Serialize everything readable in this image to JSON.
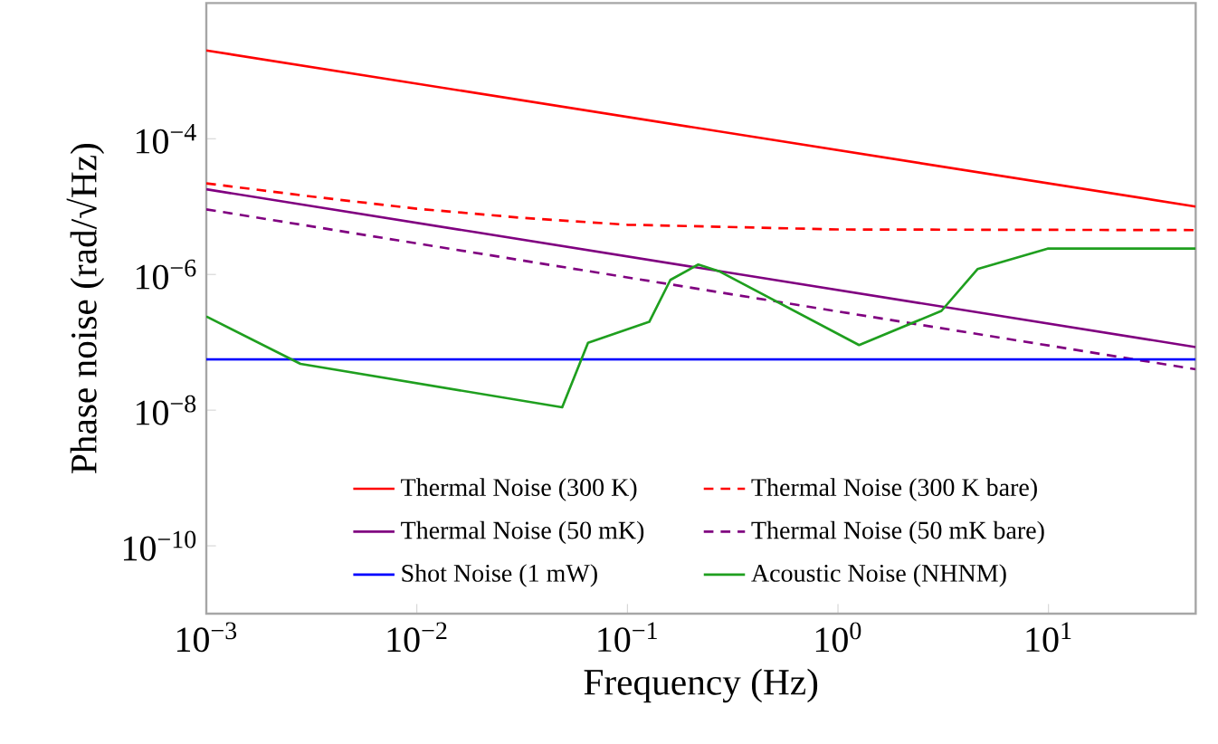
{
  "chart_data": {
    "type": "line",
    "xlabel": "Frequency (Hz)",
    "ylabel": "Phase noise (rad/√Hz)",
    "log": "xy",
    "xlim": [
      0.001,
      50
    ],
    "ylim": [
      1e-11,
      0.01
    ],
    "xticks": [
      {
        "value": 0.001,
        "label": "10$^{−3}$"
      },
      {
        "value": 0.01,
        "label": "10$^{−2}$"
      },
      {
        "value": 0.1,
        "label": "10$^{−1}$"
      },
      {
        "value": 1,
        "label": "10$^{0}$"
      },
      {
        "value": 10,
        "label": "10$^{1}$"
      }
    ],
    "yticks": [
      {
        "value": 1e-10,
        "label": "10$^{−10}$"
      },
      {
        "value": 1e-08,
        "label": "10$^{−8}$"
      },
      {
        "value": 1e-06,
        "label": "10$^{−6}$"
      },
      {
        "value": 0.0001,
        "label": "10$^{−4}$"
      }
    ],
    "grid": false,
    "legend": "bottom",
    "marker": "none",
    "series": [
      {
        "name": "Thermal Noise (300 K)",
        "color": "#ff0000",
        "line_style": "solid",
        "x": [
          0.001,
          50
        ],
        "values": [
          0.002,
          1e-05
        ]
      },
      {
        "name": "Thermal Noise (300 K bare)",
        "color": "#ff0000",
        "line_style": "dashed",
        "x": [
          0.001,
          0.0032,
          0.01,
          0.032,
          0.1,
          1,
          50
        ],
        "values": [
          2.2e-05,
          1.4e-05,
          9.3e-06,
          6.8e-06,
          5.4e-06,
          4.6e-06,
          4.5e-06
        ]
      },
      {
        "name": "Thermal Noise (50 mK)",
        "color": "#800080",
        "line_style": "solid",
        "x": [
          0.001,
          50
        ],
        "values": [
          1.8e-05,
          8.5e-08
        ]
      },
      {
        "name": "Thermal Noise (50 mK bare)",
        "color": "#800080",
        "line_style": "dashed",
        "x": [
          0.001,
          50
        ],
        "values": [
          9.1e-06,
          4e-08
        ]
      },
      {
        "name": "Shot Noise (1 mW)",
        "color": "#0000ff",
        "line_style": "solid",
        "x": [
          0.001,
          50
        ],
        "values": [
          5.6e-08,
          5.6e-08
        ]
      },
      {
        "name": "Acoustic Noise (NHNM)",
        "color": "#1f9f1f",
        "line_style": "solid",
        "x": [
          0.001,
          0.0028,
          0.049,
          0.065,
          0.127,
          0.16,
          0.217,
          0.275,
          1.26,
          3.1,
          4.6,
          9.9,
          50
        ],
        "values": [
          2.4e-07,
          4.8e-08,
          1.1e-08,
          9.8e-08,
          2e-07,
          8.3e-07,
          1.4e-06,
          1.1e-06,
          9.1e-08,
          2.9e-07,
          1.2e-06,
          2.4e-06,
          2.4e-06
        ]
      }
    ]
  }
}
